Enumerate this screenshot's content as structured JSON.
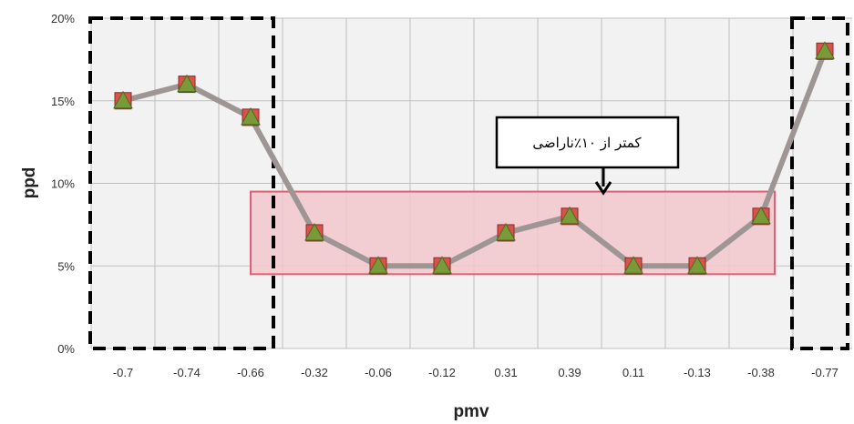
{
  "chart_data": {
    "type": "line",
    "xlabel": "pmv",
    "ylabel": "ppd",
    "categories": [
      "-0.7",
      "-0.74",
      "-0.66",
      "-0.32",
      "-0.06",
      "-0.12",
      "0.31",
      "0.39",
      "0.11",
      "-0.13",
      "-0.38",
      "-0.77"
    ],
    "series": [
      {
        "values": [
          15,
          16,
          14,
          7,
          5,
          5,
          7,
          8,
          5,
          5,
          8,
          18
        ]
      }
    ],
    "ylim": [
      0,
      20
    ],
    "yticks": [
      0,
      5,
      10,
      15,
      20
    ],
    "ytick_labels": [
      "0%",
      "5%",
      "10%",
      "15%",
      "20%"
    ],
    "grid": true,
    "annotation": {
      "text": "کمتر از ۱۰٪ناراضی"
    },
    "highlight_band": {
      "from_category": 2,
      "to_category": 10,
      "ymin": 4.5,
      "ymax": 9.5
    },
    "dashed_boxes": [
      {
        "from_category": 0,
        "to_category": 2
      },
      {
        "from_category": 11,
        "to_category": 11
      }
    ],
    "colors": {
      "line": "#9e9595",
      "marker_square": "#d9534a",
      "marker_triangle": "#7a9a3a",
      "band_fill": "#f2c8cc",
      "band_stroke": "#e06070",
      "plot_bg": "#f2f2f2",
      "grid": "#bfbfbf"
    }
  }
}
